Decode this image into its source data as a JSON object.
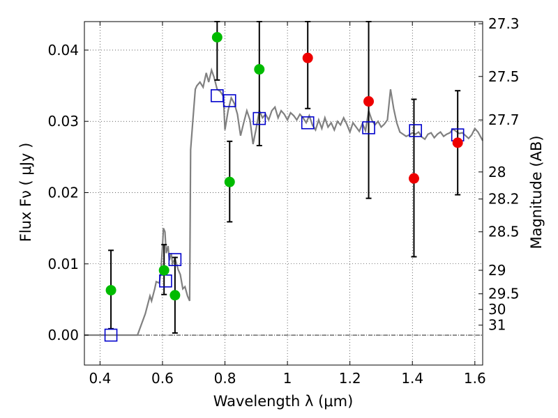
{
  "chart_data": {
    "type": "scatter",
    "title": "",
    "xlabel": "Wavelength  λ (μm)",
    "ylabel": "Flux  Fν  ( μJy )",
    "y2label": "Magnitude (AB)",
    "xlim": [
      0.35,
      1.625
    ],
    "ylim": [
      -0.0042,
      0.044
    ],
    "grid": true,
    "x_ticks": [
      0.4,
      0.6,
      0.8,
      1.0,
      1.2,
      1.4,
      1.6
    ],
    "x_tick_labels": [
      "0.4",
      "0.6",
      "0.8",
      "1",
      "1.2",
      "1.4",
      "1.6"
    ],
    "y_ticks": [
      0.0,
      0.01,
      0.02,
      0.03,
      0.04
    ],
    "y_tick_labels": [
      "0.00",
      "0.01",
      "0.02",
      "0.03",
      "0.04"
    ],
    "mag_ticks": [
      {
        "label": "27.3",
        "flux": 0.0437
      },
      {
        "label": "27.5",
        "flux": 0.0363
      },
      {
        "label": "27.7",
        "flux": 0.0302
      },
      {
        "label": "28",
        "flux": 0.0229
      },
      {
        "label": "28.2",
        "flux": 0.0191
      },
      {
        "label": "28.5",
        "flux": 0.0145
      },
      {
        "label": "29",
        "flux": 0.0091
      },
      {
        "label": "29.5",
        "flux": 0.0058
      },
      {
        "label": "30",
        "flux": 0.0036
      },
      {
        "label": "31",
        "flux": 0.0014
      }
    ],
    "colors": {
      "model": "#808080",
      "green": "#00bb00",
      "red": "#ee0000",
      "square": "#0000cc",
      "errorbar": "#000000"
    },
    "model_spectrum": [
      [
        0.35,
        0.0
      ],
      [
        0.52,
        0.0
      ],
      [
        0.545,
        0.003
      ],
      [
        0.56,
        0.0055
      ],
      [
        0.565,
        0.0048
      ],
      [
        0.575,
        0.0065
      ],
      [
        0.58,
        0.0075
      ],
      [
        0.59,
        0.0073
      ],
      [
        0.595,
        0.009
      ],
      [
        0.6,
        0.0125
      ],
      [
        0.603,
        0.015
      ],
      [
        0.608,
        0.0145
      ],
      [
        0.612,
        0.0115
      ],
      [
        0.618,
        0.0125
      ],
      [
        0.622,
        0.0105
      ],
      [
        0.628,
        0.0115
      ],
      [
        0.632,
        0.01
      ],
      [
        0.64,
        0.0108
      ],
      [
        0.65,
        0.0092
      ],
      [
        0.657,
        0.0085
      ],
      [
        0.665,
        0.0065
      ],
      [
        0.672,
        0.0068
      ],
      [
        0.68,
        0.0055
      ],
      [
        0.687,
        0.0048
      ],
      [
        0.69,
        0.026
      ],
      [
        0.697,
        0.03
      ],
      [
        0.705,
        0.0345
      ],
      [
        0.71,
        0.035
      ],
      [
        0.72,
        0.0355
      ],
      [
        0.73,
        0.0348
      ],
      [
        0.74,
        0.0368
      ],
      [
        0.748,
        0.0355
      ],
      [
        0.757,
        0.0372
      ],
      [
        0.765,
        0.0362
      ],
      [
        0.775,
        0.0345
      ],
      [
        0.785,
        0.0342
      ],
      [
        0.795,
        0.0335
      ],
      [
        0.8,
        0.0288
      ],
      [
        0.81,
        0.0315
      ],
      [
        0.82,
        0.0333
      ],
      [
        0.83,
        0.0325
      ],
      [
        0.84,
        0.031
      ],
      [
        0.85,
        0.028
      ],
      [
        0.86,
        0.0298
      ],
      [
        0.87,
        0.0315
      ],
      [
        0.88,
        0.0302
      ],
      [
        0.89,
        0.0268
      ],
      [
        0.9,
        0.029
      ],
      [
        0.91,
        0.0315
      ],
      [
        0.92,
        0.0305
      ],
      [
        0.93,
        0.031
      ],
      [
        0.94,
        0.0302
      ],
      [
        0.95,
        0.0315
      ],
      [
        0.96,
        0.032
      ],
      [
        0.97,
        0.0305
      ],
      [
        0.98,
        0.0315
      ],
      [
        0.99,
        0.031
      ],
      [
        1.0,
        0.0302
      ],
      [
        1.01,
        0.0312
      ],
      [
        1.02,
        0.0308
      ],
      [
        1.03,
        0.0302
      ],
      [
        1.04,
        0.031
      ],
      [
        1.05,
        0.0305
      ],
      [
        1.06,
        0.0298
      ],
      [
        1.07,
        0.0308
      ],
      [
        1.08,
        0.0295
      ],
      [
        1.09,
        0.0288
      ],
      [
        1.1,
        0.0302
      ],
      [
        1.11,
        0.029
      ],
      [
        1.12,
        0.0305
      ],
      [
        1.13,
        0.0292
      ],
      [
        1.14,
        0.0298
      ],
      [
        1.15,
        0.0288
      ],
      [
        1.16,
        0.03
      ],
      [
        1.17,
        0.0295
      ],
      [
        1.18,
        0.0305
      ],
      [
        1.19,
        0.0296
      ],
      [
        1.2,
        0.0285
      ],
      [
        1.21,
        0.0298
      ],
      [
        1.22,
        0.0292
      ],
      [
        1.23,
        0.0286
      ],
      [
        1.24,
        0.0297
      ],
      [
        1.25,
        0.0287
      ],
      [
        1.26,
        0.0315
      ],
      [
        1.27,
        0.0302
      ],
      [
        1.28,
        0.0295
      ],
      [
        1.29,
        0.03
      ],
      [
        1.3,
        0.0292
      ],
      [
        1.31,
        0.0296
      ],
      [
        1.32,
        0.0302
      ],
      [
        1.33,
        0.0345
      ],
      [
        1.34,
        0.0318
      ],
      [
        1.35,
        0.0298
      ],
      [
        1.36,
        0.0285
      ],
      [
        1.37,
        0.0282
      ],
      [
        1.38,
        0.0279
      ],
      [
        1.39,
        0.0281
      ],
      [
        1.4,
        0.0284
      ],
      [
        1.41,
        0.0282
      ],
      [
        1.42,
        0.0285
      ],
      [
        1.43,
        0.0278
      ],
      [
        1.44,
        0.0275
      ],
      [
        1.45,
        0.0282
      ],
      [
        1.46,
        0.0284
      ],
      [
        1.47,
        0.0277
      ],
      [
        1.48,
        0.0282
      ],
      [
        1.49,
        0.0285
      ],
      [
        1.5,
        0.0279
      ],
      [
        1.51,
        0.0282
      ],
      [
        1.52,
        0.0284
      ],
      [
        1.53,
        0.0289
      ],
      [
        1.54,
        0.0286
      ],
      [
        1.55,
        0.0283
      ],
      [
        1.56,
        0.0284
      ],
      [
        1.57,
        0.028
      ],
      [
        1.58,
        0.0276
      ],
      [
        1.59,
        0.0281
      ],
      [
        1.6,
        0.029
      ],
      [
        1.61,
        0.0285
      ],
      [
        1.625,
        0.0273
      ]
    ],
    "points": [
      {
        "x": 0.435,
        "y": 0.0063,
        "err_low": 0.0009,
        "err_high": 0.0119,
        "color": "green"
      },
      {
        "x": 0.605,
        "y": 0.0091,
        "err_low": 0.0057,
        "err_high": 0.0127,
        "color": "green"
      },
      {
        "x": 0.64,
        "y": 0.0056,
        "err_low": 0.0003,
        "err_high": 0.0109,
        "color": "green"
      },
      {
        "x": 0.775,
        "y": 0.0418,
        "err_low": 0.0358,
        "err_high": 0.044,
        "color": "green"
      },
      {
        "x": 0.815,
        "y": 0.0215,
        "err_low": 0.0159,
        "err_high": 0.0272,
        "color": "green"
      },
      {
        "x": 0.91,
        "y": 0.0373,
        "err_low": 0.0266,
        "err_high": 0.044,
        "color": "green"
      },
      {
        "x": 1.065,
        "y": 0.0389,
        "err_low": 0.0318,
        "err_high": 0.044,
        "color": "red"
      },
      {
        "x": 1.26,
        "y": 0.0328,
        "err_low": 0.0192,
        "err_high": 0.044,
        "color": "red"
      },
      {
        "x": 1.405,
        "y": 0.022,
        "err_low": 0.011,
        "err_high": 0.0331,
        "color": "red"
      },
      {
        "x": 1.545,
        "y": 0.027,
        "err_low": 0.0197,
        "err_high": 0.0343,
        "color": "red"
      }
    ],
    "model_points": [
      {
        "x": 0.435,
        "y": 0.0
      },
      {
        "x": 0.61,
        "y": 0.0076
      },
      {
        "x": 0.64,
        "y": 0.0106
      },
      {
        "x": 0.775,
        "y": 0.0336
      },
      {
        "x": 0.815,
        "y": 0.0329
      },
      {
        "x": 0.91,
        "y": 0.0304
      },
      {
        "x": 1.065,
        "y": 0.0298
      },
      {
        "x": 1.26,
        "y": 0.0291
      },
      {
        "x": 1.41,
        "y": 0.0287
      },
      {
        "x": 1.545,
        "y": 0.0281
      }
    ]
  }
}
